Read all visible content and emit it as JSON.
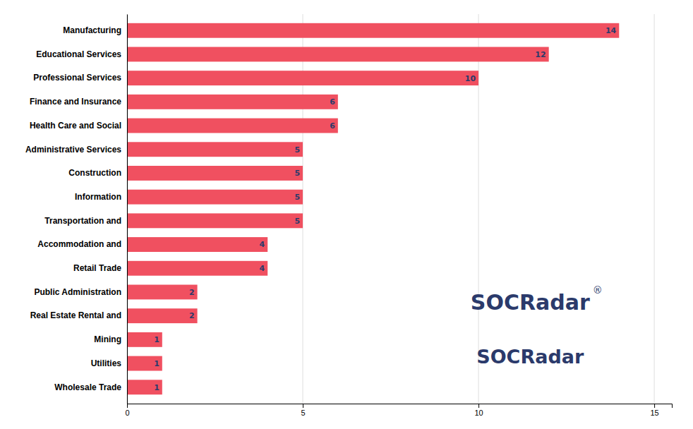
{
  "chart_data": {
    "type": "bar",
    "orientation": "horizontal",
    "categories": [
      "Wholesale Trade",
      "Utilities",
      "Mining",
      "Real Estate Rental and",
      "Public Administration",
      "Retail Trade",
      "Accommodation and",
      "Transportation and",
      "Information",
      "Construction",
      "Administrative Services",
      "Health Care and Social",
      "Finance and Insurance",
      "Professional Services",
      "Educational Services",
      "Manufacturing"
    ],
    "values": [
      1,
      1,
      1,
      2,
      2,
      4,
      4,
      5,
      5,
      5,
      5,
      6,
      6,
      10,
      12,
      14
    ],
    "color": "#F05060",
    "xlim": [
      0,
      15.5
    ],
    "xticks": [
      0,
      5,
      10,
      15
    ],
    "grid": true,
    "data_labels": true,
    "annotations": [
      "SOCRadar",
      "SOCRadar",
      "®"
    ]
  }
}
